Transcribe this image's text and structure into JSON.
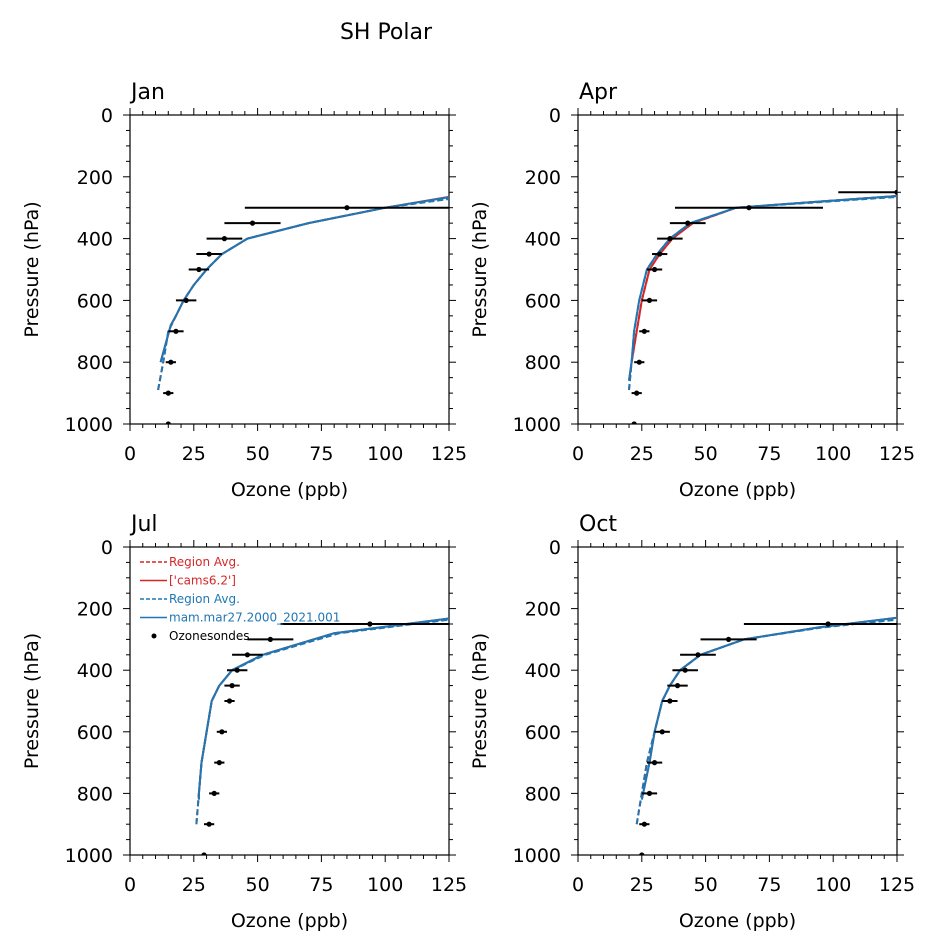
{
  "figure_title": "SH Polar",
  "colors": {
    "model_a": "#d62728",
    "model_b": "#1f77b4",
    "obs": "#000000"
  },
  "legend": {
    "entries": [
      {
        "label": "Region Avg.",
        "style": "dashed",
        "color": "#d62728"
      },
      {
        "label": "['cams6.2']",
        "style": "solid",
        "color": "#d62728"
      },
      {
        "label": "Region Avg.",
        "style": "dashed",
        "color": "#1f77b4"
      },
      {
        "label": "mam.mar27.2000_2021.001",
        "style": "solid",
        "color": "#1f77b4"
      },
      {
        "label": "Ozonesondes",
        "style": "point",
        "color": "#000000"
      }
    ]
  },
  "chart_data": [
    {
      "type": "line",
      "title": "Jan",
      "xlabel": "Ozone (ppb)",
      "ylabel": "Pressure (hPa)",
      "xlim": [
        0,
        125
      ],
      "ylim": [
        1000,
        0
      ],
      "xticks": [
        "0",
        "25",
        "50",
        "75",
        "100",
        "125"
      ],
      "yticks": [
        "0",
        "200",
        "400",
        "600",
        "800",
        "1000"
      ],
      "series": [
        {
          "key": "model_a",
          "style": "dashed",
          "x": [
            11,
            13,
            15,
            18,
            21,
            25,
            30,
            36,
            46,
            70,
            100,
            125
          ],
          "y": [
            890,
            800,
            700,
            650,
            600,
            550,
            500,
            450,
            400,
            350,
            300,
            270
          ]
        },
        {
          "key": "model_a",
          "style": "solid",
          "x": [
            12,
            14,
            16,
            18,
            21,
            25,
            30,
            36,
            46,
            70,
            100,
            125
          ],
          "y": [
            800,
            740,
            680,
            650,
            600,
            550,
            500,
            450,
            400,
            350,
            300,
            265
          ]
        },
        {
          "key": "model_b",
          "style": "dashed",
          "x": [
            11,
            13,
            15,
            18,
            21,
            25,
            30,
            36,
            46,
            70,
            100,
            125
          ],
          "y": [
            890,
            800,
            700,
            650,
            600,
            550,
            500,
            450,
            400,
            350,
            300,
            272
          ]
        },
        {
          "key": "model_b",
          "style": "solid",
          "x": [
            12,
            14,
            16,
            18,
            21,
            25,
            30,
            36,
            46,
            70,
            100,
            125
          ],
          "y": [
            800,
            740,
            680,
            650,
            600,
            550,
            500,
            450,
            400,
            350,
            300,
            266
          ]
        }
      ],
      "obs": [
        {
          "p": 1000,
          "x": 15,
          "err": 0
        },
        {
          "p": 900,
          "x": 15,
          "err": 2
        },
        {
          "p": 800,
          "x": 16,
          "err": 2
        },
        {
          "p": 700,
          "x": 18,
          "err": 3
        },
        {
          "p": 600,
          "x": 22,
          "err": 4
        },
        {
          "p": 500,
          "x": 27,
          "err": 4
        },
        {
          "p": 450,
          "x": 31,
          "err": 5
        },
        {
          "p": 400,
          "x": 37,
          "err": 7
        },
        {
          "p": 350,
          "x": 48,
          "err": 11
        },
        {
          "p": 300,
          "x": 85,
          "err": 40
        }
      ]
    },
    {
      "type": "line",
      "title": "Apr",
      "xlabel": "Ozone (ppb)",
      "ylabel": "Pressure (hPa)",
      "xlim": [
        0,
        125
      ],
      "ylim": [
        1000,
        0
      ],
      "xticks": [
        "0",
        "25",
        "50",
        "75",
        "100",
        "125"
      ],
      "yticks": [
        "0",
        "200",
        "400",
        "600",
        "800",
        "1000"
      ],
      "series": [
        {
          "key": "model_a",
          "style": "dashed",
          "x": [
            20,
            21,
            23,
            25,
            28,
            32,
            37,
            45,
            62,
            95,
            125
          ],
          "y": [
            890,
            800,
            700,
            600,
            500,
            450,
            400,
            350,
            300,
            280,
            262
          ]
        },
        {
          "key": "model_a",
          "style": "solid",
          "x": [
            20,
            21,
            23,
            25,
            28,
            32,
            37,
            45,
            62,
            95,
            125
          ],
          "y": [
            860,
            800,
            700,
            600,
            500,
            450,
            400,
            350,
            300,
            280,
            262
          ]
        },
        {
          "key": "model_b",
          "style": "dashed",
          "x": [
            20,
            21,
            22,
            24,
            27,
            31,
            36,
            44,
            62,
            95,
            125
          ],
          "y": [
            890,
            800,
            700,
            600,
            500,
            450,
            400,
            350,
            300,
            282,
            265
          ]
        },
        {
          "key": "model_b",
          "style": "solid",
          "x": [
            20,
            21,
            22,
            24,
            27,
            31,
            36,
            44,
            62,
            95,
            125
          ],
          "y": [
            860,
            800,
            700,
            600,
            500,
            450,
            400,
            350,
            300,
            280,
            262
          ]
        }
      ],
      "obs": [
        {
          "p": 1000,
          "x": 22,
          "err": 0
        },
        {
          "p": 900,
          "x": 23,
          "err": 2
        },
        {
          "p": 800,
          "x": 24,
          "err": 2
        },
        {
          "p": 700,
          "x": 26,
          "err": 2
        },
        {
          "p": 600,
          "x": 28,
          "err": 3
        },
        {
          "p": 500,
          "x": 30,
          "err": 3
        },
        {
          "p": 450,
          "x": 32,
          "err": 3
        },
        {
          "p": 400,
          "x": 36,
          "err": 5
        },
        {
          "p": 350,
          "x": 43,
          "err": 7
        },
        {
          "p": 300,
          "x": 67,
          "err": 29
        },
        {
          "p": 250,
          "x": 125,
          "err": 23
        }
      ]
    },
    {
      "type": "line",
      "title": "Jul",
      "xlabel": "Ozone (ppb)",
      "ylabel": "Pressure (hPa)",
      "xlim": [
        0,
        125
      ],
      "ylim": [
        1000,
        0
      ],
      "xticks": [
        "0",
        "25",
        "50",
        "75",
        "100",
        "125"
      ],
      "yticks": [
        "0",
        "200",
        "400",
        "600",
        "800",
        "1000"
      ],
      "series": [
        {
          "key": "model_a",
          "style": "dashed",
          "x": [
            26,
            27,
            28,
            30,
            32,
            35,
            40,
            52,
            80,
            125
          ],
          "y": [
            900,
            800,
            700,
            600,
            500,
            450,
            400,
            350,
            280,
            235
          ]
        },
        {
          "key": "model_a",
          "style": "solid",
          "x": [
            27,
            27,
            28,
            30,
            32,
            35,
            40,
            52,
            80,
            125
          ],
          "y": [
            820,
            800,
            700,
            600,
            500,
            450,
            400,
            350,
            280,
            232
          ]
        },
        {
          "key": "model_b",
          "style": "dashed",
          "x": [
            26,
            27,
            28,
            30,
            32,
            35,
            40,
            53,
            82,
            125
          ],
          "y": [
            900,
            800,
            700,
            600,
            500,
            450,
            400,
            350,
            280,
            236
          ]
        },
        {
          "key": "model_b",
          "style": "solid",
          "x": [
            27,
            27,
            28,
            30,
            32,
            35,
            40,
            52,
            80,
            125
          ],
          "y": [
            820,
            800,
            700,
            600,
            500,
            450,
            400,
            350,
            280,
            232
          ]
        }
      ],
      "obs": [
        {
          "p": 1000,
          "x": 29,
          "err": 0
        },
        {
          "p": 900,
          "x": 31,
          "err": 2
        },
        {
          "p": 800,
          "x": 33,
          "err": 2
        },
        {
          "p": 700,
          "x": 35,
          "err": 2
        },
        {
          "p": 600,
          "x": 36,
          "err": 2
        },
        {
          "p": 500,
          "x": 39,
          "err": 2
        },
        {
          "p": 450,
          "x": 40,
          "err": 3
        },
        {
          "p": 400,
          "x": 42,
          "err": 4
        },
        {
          "p": 350,
          "x": 46,
          "err": 6
        },
        {
          "p": 300,
          "x": 55,
          "err": 9
        },
        {
          "p": 250,
          "x": 94,
          "err": 35
        }
      ]
    },
    {
      "type": "line",
      "title": "Oct",
      "xlabel": "Ozone (ppb)",
      "ylabel": "Pressure (hPa)",
      "xlim": [
        0,
        125
      ],
      "ylim": [
        1000,
        0
      ],
      "xticks": [
        "0",
        "25",
        "50",
        "75",
        "100",
        "125"
      ],
      "yticks": [
        "0",
        "200",
        "400",
        "600",
        "800",
        "1000"
      ],
      "series": [
        {
          "key": "model_a",
          "style": "dashed",
          "x": [
            23,
            25,
            27,
            30,
            33,
            36,
            40,
            48,
            65,
            95,
            125
          ],
          "y": [
            900,
            800,
            700,
            600,
            500,
            450,
            400,
            350,
            300,
            260,
            232
          ]
        },
        {
          "key": "model_a",
          "style": "solid",
          "x": [
            25,
            26,
            28,
            30,
            33,
            36,
            40,
            48,
            65,
            95,
            125
          ],
          "y": [
            820,
            780,
            700,
            600,
            500,
            450,
            400,
            350,
            300,
            260,
            230
          ]
        },
        {
          "key": "model_b",
          "style": "dashed",
          "x": [
            23,
            25,
            27,
            30,
            33,
            36,
            40,
            48,
            65,
            95,
            125
          ],
          "y": [
            900,
            800,
            700,
            600,
            500,
            450,
            400,
            350,
            300,
            262,
            236
          ]
        },
        {
          "key": "model_b",
          "style": "solid",
          "x": [
            25,
            26,
            28,
            30,
            33,
            36,
            40,
            48,
            65,
            95,
            125
          ],
          "y": [
            820,
            780,
            700,
            600,
            500,
            450,
            400,
            350,
            300,
            260,
            230
          ]
        }
      ],
      "obs": [
        {
          "p": 1000,
          "x": 25,
          "err": 0
        },
        {
          "p": 900,
          "x": 26,
          "err": 2
        },
        {
          "p": 800,
          "x": 28,
          "err": 3
        },
        {
          "p": 700,
          "x": 30,
          "err": 3
        },
        {
          "p": 600,
          "x": 33,
          "err": 3
        },
        {
          "p": 500,
          "x": 36,
          "err": 3
        },
        {
          "p": 450,
          "x": 39,
          "err": 4
        },
        {
          "p": 400,
          "x": 42,
          "err": 5
        },
        {
          "p": 350,
          "x": 47,
          "err": 7
        },
        {
          "p": 300,
          "x": 59,
          "err": 11
        },
        {
          "p": 250,
          "x": 98,
          "err": 33
        }
      ]
    }
  ]
}
